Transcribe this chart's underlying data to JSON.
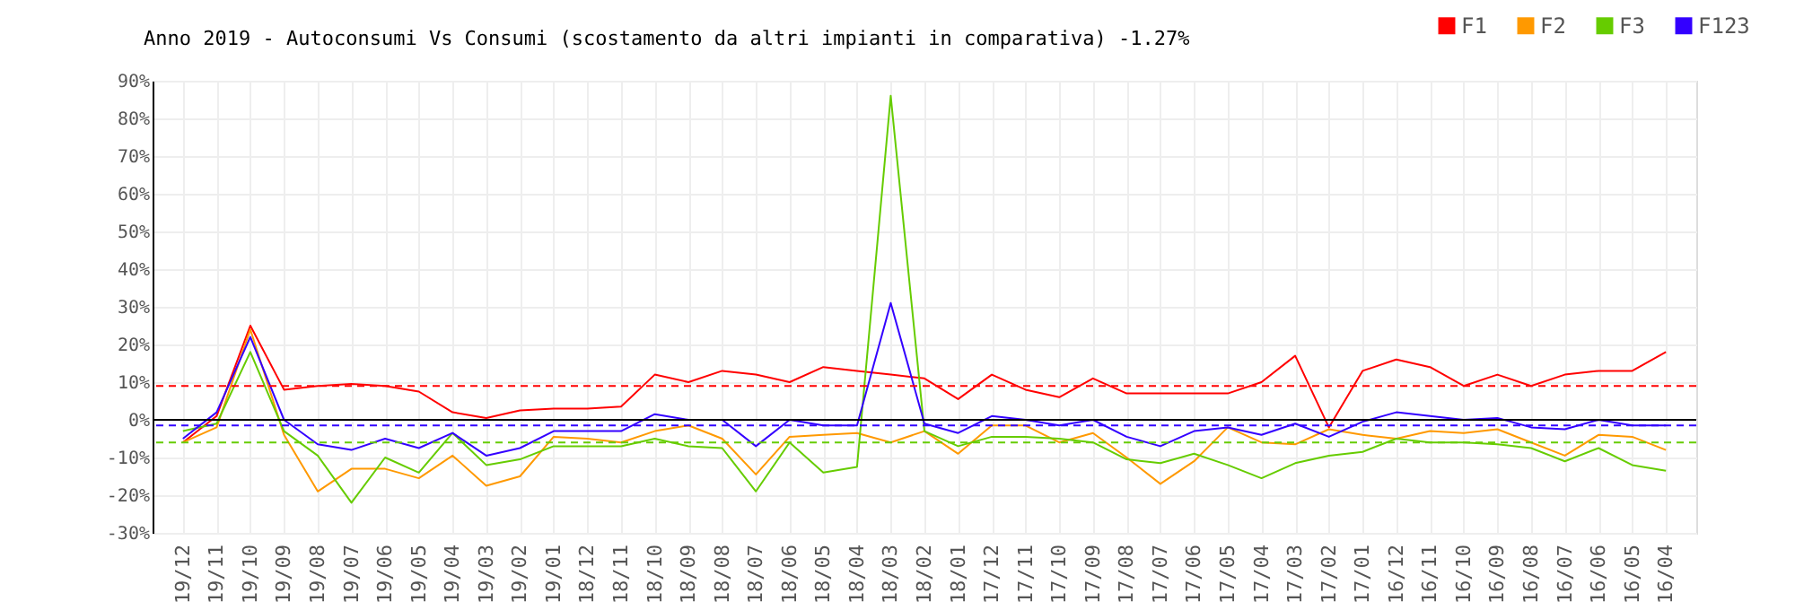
{
  "chart_data": {
    "type": "line",
    "title": "Anno 2019 - Autoconsumi Vs Consumi (scostamento da altri impianti in comparativa) -1.27%",
    "categories": [
      "19/12",
      "19/11",
      "19/10",
      "19/09",
      "19/08",
      "19/07",
      "19/06",
      "19/05",
      "19/04",
      "19/03",
      "19/02",
      "19/01",
      "18/12",
      "18/11",
      "18/10",
      "18/09",
      "18/08",
      "18/07",
      "18/06",
      "18/05",
      "18/04",
      "18/03",
      "18/02",
      "18/01",
      "17/12",
      "17/11",
      "17/10",
      "17/09",
      "17/08",
      "17/07",
      "17/06",
      "17/05",
      "17/04",
      "17/03",
      "17/02",
      "17/01",
      "16/12",
      "16/11",
      "16/10",
      "16/09",
      "16/08",
      "16/07",
      "16/06",
      "16/05",
      "16/04"
    ],
    "series": [
      {
        "name": "F1",
        "color": "#ff0000",
        "values": [
          -6,
          1,
          25,
          8,
          9,
          9.5,
          9,
          7.5,
          2,
          0.5,
          2.5,
          3,
          3,
          3.5,
          12,
          10,
          13,
          12,
          10,
          14,
          13,
          12,
          11,
          5.5,
          12,
          8,
          6,
          11,
          7,
          7,
          7,
          7,
          10,
          17,
          -2,
          13,
          16,
          14,
          9,
          12,
          9,
          12,
          13,
          13,
          18
        ]
      },
      {
        "name": "F2",
        "color": "#ff9900",
        "values": [
          -6,
          -2,
          24,
          -4,
          -19,
          -13,
          -13,
          -15.5,
          -9.5,
          -17.5,
          -15,
          -4.5,
          -5,
          -6,
          -3,
          -1.5,
          -5,
          -14.5,
          -4.5,
          -4,
          -3.5,
          -6,
          -3,
          -9,
          -1.5,
          -1.5,
          -6,
          -3.5,
          -10,
          -17,
          -11,
          -2,
          -6,
          -6.5,
          -2.5,
          -4,
          -5,
          -3,
          -3.5,
          -2.5,
          -6,
          -9.5,
          -4,
          -4.5,
          -8
        ]
      },
      {
        "name": "F3",
        "color": "#66cc00",
        "values": [
          -3,
          -1,
          18,
          -3,
          -9.5,
          -22,
          -10,
          -14,
          -3.5,
          -12,
          -10.5,
          -7,
          -7,
          -7,
          -5,
          -7,
          -7.5,
          -19,
          -6,
          -14,
          -12.5,
          86,
          -3,
          -7,
          -4.5,
          -4.5,
          -5,
          -6,
          -10.5,
          -11.5,
          -9,
          -12,
          -15.5,
          -11.5,
          -9.5,
          -8.5,
          -5,
          -6,
          -6,
          -6.5,
          -7.5,
          -11,
          -7.5,
          -12,
          -13.5
        ]
      },
      {
        "name": "F123",
        "color": "#3300ff",
        "values": [
          -5,
          2,
          22,
          0,
          -6.5,
          -8,
          -5,
          -7.5,
          -3.5,
          -9.5,
          -7.5,
          -3,
          -3,
          -3,
          1.5,
          0,
          0,
          -7,
          0,
          -1.5,
          -1.5,
          31,
          -1,
          -3.5,
          1,
          0,
          -1.5,
          0,
          -4.5,
          -7,
          -3,
          -2,
          -4,
          -1,
          -4.5,
          -0.5,
          2,
          1,
          0,
          0.5,
          -2,
          -2.5,
          0,
          -1.5,
          -1.5
        ]
      }
    ],
    "ylim": [
      -30,
      90
    ],
    "yticks": [
      {
        "value": -30,
        "label": "-30%"
      },
      {
        "value": -20,
        "label": "-20%"
      },
      {
        "value": -10,
        "label": "-10%"
      },
      {
        "value": 0,
        "label": "0%"
      },
      {
        "value": 10,
        "label": "10%"
      },
      {
        "value": 20,
        "label": "20%"
      },
      {
        "value": 30,
        "label": "30%"
      },
      {
        "value": 40,
        "label": "40%"
      },
      {
        "value": 50,
        "label": "50%"
      },
      {
        "value": 60,
        "label": "60%"
      },
      {
        "value": 70,
        "label": "70%"
      },
      {
        "value": 80,
        "label": "80%"
      },
      {
        "value": 90,
        "label": "90%"
      }
    ],
    "ref_lines": [
      {
        "axis": "y",
        "value": 0,
        "color": "#000000",
        "line_style": "solid"
      },
      {
        "axis": "y",
        "value": 9,
        "color": "#ff0000",
        "line_style": "dashed"
      },
      {
        "axis": "y",
        "value": -1.5,
        "color": "#3300ff",
        "line_style": "dashed"
      },
      {
        "axis": "y",
        "value": -6,
        "color": "#66cc00",
        "line_style": "dashed"
      }
    ],
    "grid": true,
    "legend": "top right",
    "marker": "none",
    "line_style": "solid"
  }
}
